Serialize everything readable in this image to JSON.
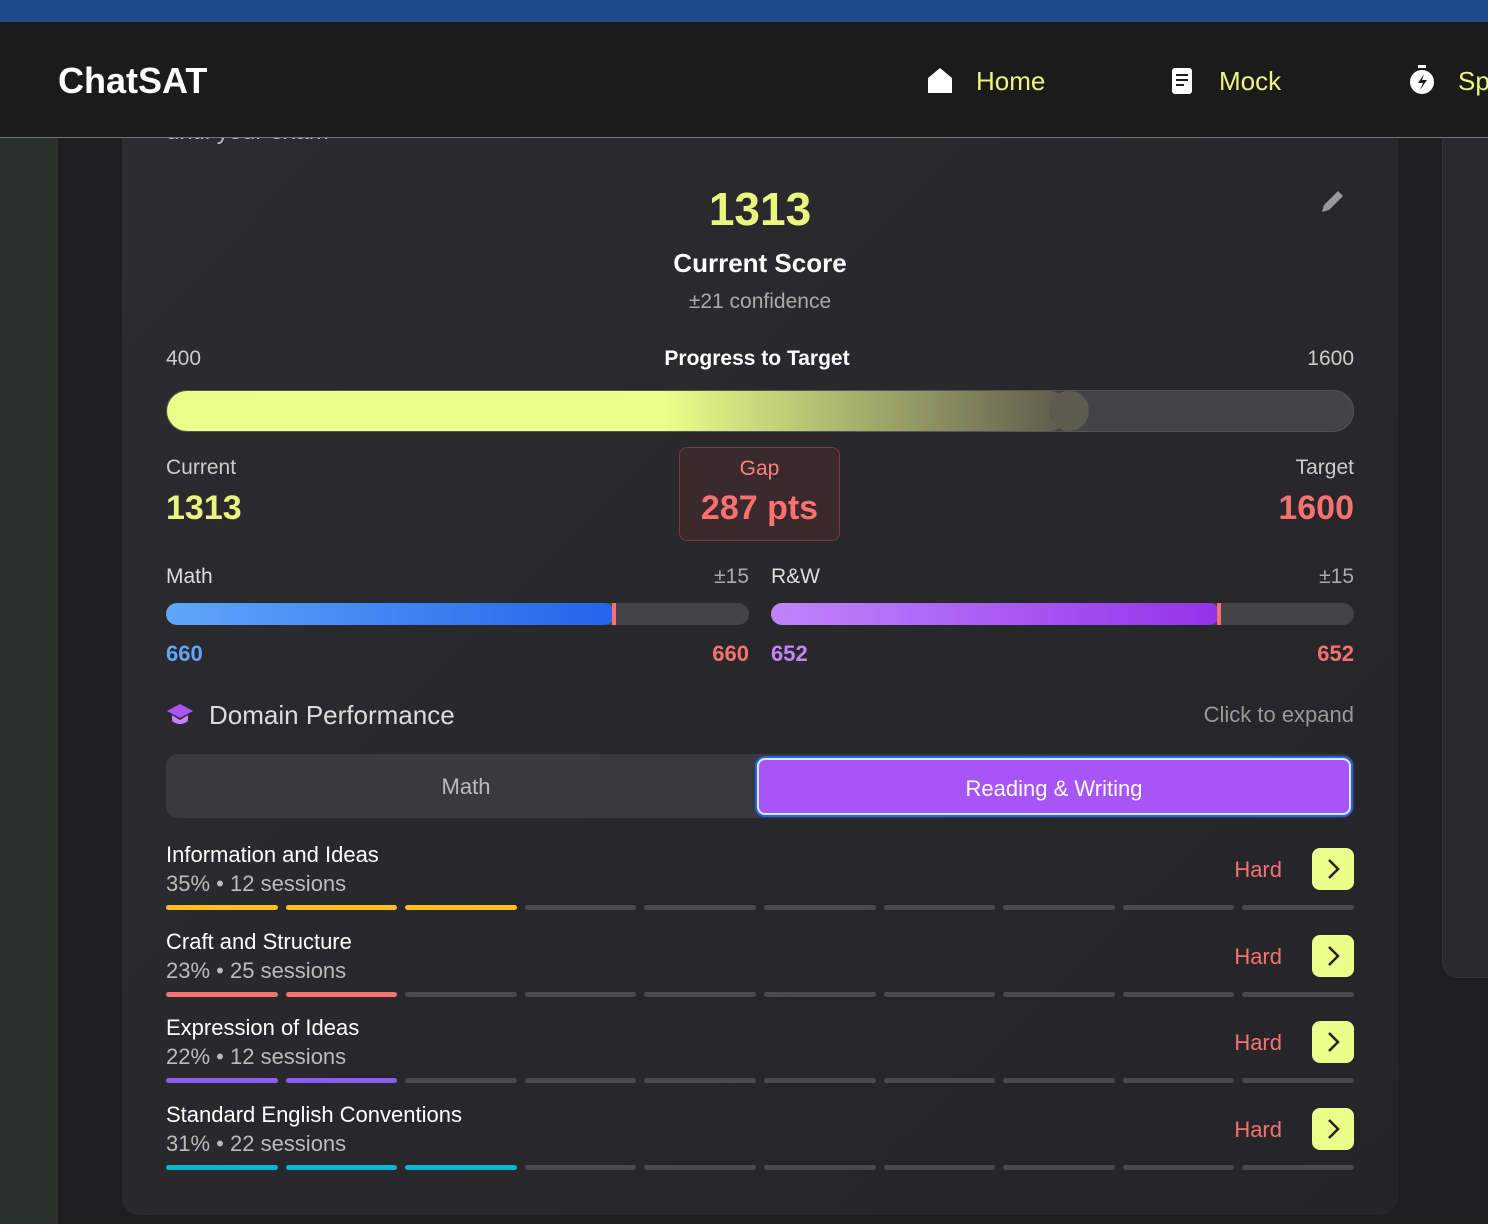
{
  "nav": {
    "brand": "ChatSAT",
    "items": [
      "Home",
      "Mock",
      "Sp"
    ]
  },
  "header_fragment": "until your exam",
  "score": {
    "value": 1313,
    "label": "Current Score",
    "confidence": "±21 confidence"
  },
  "progress": {
    "min": 400,
    "title": "Progress to Target",
    "max": 1600,
    "current_label": "Current",
    "current": 1313,
    "gap_label": "Gap",
    "gap": "287 pts",
    "target_label": "Target",
    "target": 1600
  },
  "sections": [
    {
      "name": "Math",
      "confidence": "±15",
      "current": 660,
      "target": 660
    },
    {
      "name": "R&W",
      "confidence": "±15",
      "current": 652,
      "target": 652
    }
  ],
  "domain": {
    "title": "Domain Performance",
    "hint": "Click to expand",
    "tabs": [
      "Math",
      "Reading & Writing"
    ],
    "rows": [
      {
        "name": "Information and Ideas",
        "percent": "35%",
        "sessions": "12 sessions",
        "difficulty": "Hard",
        "color": "#fbbf24"
      },
      {
        "name": "Craft and Structure",
        "percent": "23%",
        "sessions": "25 sessions",
        "difficulty": "Hard",
        "color": "#f87171"
      },
      {
        "name": "Expression of Ideas",
        "percent": "22%",
        "sessions": "12 sessions",
        "difficulty": "Hard",
        "color": "#8b5cf6"
      },
      {
        "name": "Standard English Conventions",
        "percent": "31%",
        "sessions": "22 sessions",
        "difficulty": "Hard",
        "color": "#06b6d4"
      }
    ]
  }
}
